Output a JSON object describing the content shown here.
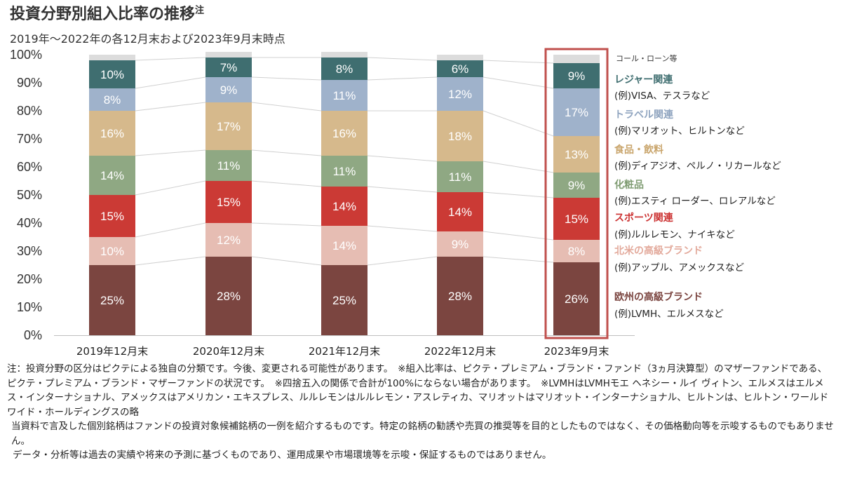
{
  "header": {
    "title": "投資分野別組入比率の推移",
    "title_superscript": "注",
    "subtitle": "2019年～2022年の各12月末および2023年9月末時点"
  },
  "chart_data": {
    "type": "bar",
    "stacked": true,
    "categories": [
      "2019年12月末",
      "2020年12月末",
      "2021年12月末",
      "2022年12月末",
      "2023年9月末"
    ],
    "y_ticks": [
      "0%",
      "10%",
      "20%",
      "30%",
      "40%",
      "50%",
      "60%",
      "70%",
      "80%",
      "90%",
      "100%"
    ],
    "ylim": [
      0,
      100
    ],
    "grid": false,
    "legend_position": "right",
    "highlighted_category": "2023年9月末",
    "highlight_color": "#c0504d",
    "series": [
      {
        "name": "欧州の高級ブランド",
        "example": "(例)LVMH、エルメスなど",
        "color": "#7b4540",
        "label_color": "#ffffff",
        "name_color": "#7b4540",
        "values": [
          25,
          28,
          25,
          28,
          26
        ],
        "labels": [
          "25%",
          "28%",
          "25%",
          "28%",
          "26%"
        ]
      },
      {
        "name": "北米の高級ブランド",
        "example": "(例)アップル、アメックスなど",
        "color": "#e6bdb3",
        "label_color": "#ffffff",
        "name_color": "#e3aa9c",
        "values": [
          10,
          12,
          14,
          9,
          8
        ],
        "labels": [
          "10%",
          "12%",
          "14%",
          "9%",
          "8%"
        ]
      },
      {
        "name": "スポーツ関連",
        "example": "(例)ルルレモン、ナイキなど",
        "color": "#cb3a35",
        "label_color": "#ffffff",
        "name_color": "#cc3333",
        "values": [
          15,
          15,
          14,
          14,
          15
        ],
        "labels": [
          "15%",
          "15%",
          "14%",
          "14%",
          "15%"
        ]
      },
      {
        "name": "化粧品",
        "example": "(例)エスティ ローダー、ロレアルなど",
        "color": "#8fa883",
        "label_color": "#ffffff",
        "name_color": "#7f9c72",
        "values": [
          14,
          11,
          11,
          11,
          9
        ],
        "labels": [
          "14%",
          "11%",
          "11%",
          "11%",
          "9%"
        ]
      },
      {
        "name": "食品・飲料",
        "example": "(例)ディアジオ、ペルノ・リカールなど",
        "color": "#d6b98c",
        "label_color": "#ffffff",
        "name_color": "#c9a56c",
        "values": [
          16,
          17,
          16,
          18,
          13
        ],
        "labels": [
          "16%",
          "17%",
          "16%",
          "18%",
          "13%"
        ]
      },
      {
        "name": "トラベル関連",
        "example": "(例)マリオット、ヒルトンなど",
        "color": "#9fb2cb",
        "label_color": "#ffffff",
        "name_color": "#8fa4bf",
        "values": [
          8,
          9,
          11,
          12,
          17
        ],
        "labels": [
          "8%",
          "9%",
          "11%",
          "12%",
          "17%"
        ]
      },
      {
        "name": "レジャー関連",
        "example": "(例)VISA、テスラなど",
        "color": "#3f6e70",
        "label_color": "#ffffff",
        "name_color": "#3f6e70",
        "values": [
          10,
          7,
          8,
          6,
          9
        ],
        "labels": [
          "10%",
          "7%",
          "8%",
          "6%",
          "9%"
        ]
      },
      {
        "name": "コール・ローン等",
        "example": "",
        "color": "#dcdcdc",
        "label_color": "#333333",
        "name_color": "#333333",
        "values": [
          2,
          2,
          2,
          2,
          3
        ],
        "labels": [
          "",
          "",
          "",
          "",
          ""
        ]
      }
    ]
  },
  "notes": {
    "line1": "注：投資分野の区分はピクテによる独自の分類です。今後、変更される可能性があります。　※組入比率は、ピクテ・プレミアム・ブランド・ファンド（3ヵ月決算型）のマザーファンドである、ピクテ・プレミアム・ブランド・マザーファンドの状況です。　※四捨五入の関係で合計が100%にならない場合があります。　※LVMHはLVMHモエ ヘネシー・ルイ ヴィトン、エルメスはエルメス・インターナショナル、アメックスはアメリカン・エキスプレス、ルルレモンはルルレモン・アスレティカ、マリオットはマリオット・インターナショナル、ヒルトンは、ヒルトン・ワールドワイド・ホールディングスの略",
    "line2": "当資料で言及した個別銘柄はファンドの投資対象候補銘柄の一例を紹介するものです。特定の銘柄の勧誘や売買の推奨等を目的としたものではなく、その価格動向等を示唆するものでもありません。",
    "line3": "データ・分析等は過去の実績や将来の予測に基づくものであり、運用成果や市場環境等を示唆・保証するものではありません。"
  }
}
